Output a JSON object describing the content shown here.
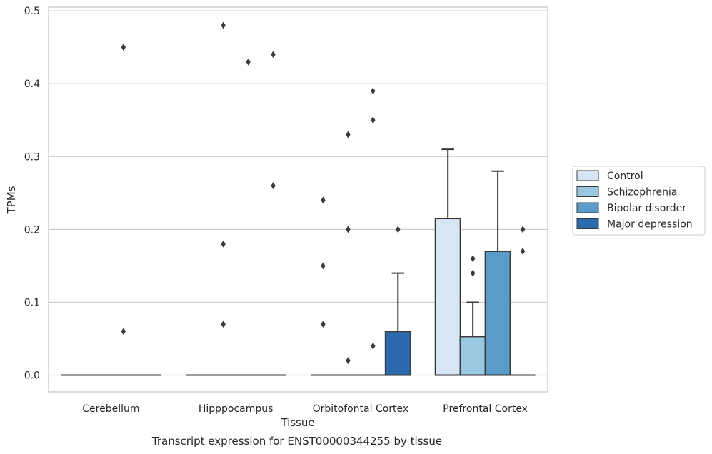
{
  "chart_data": {
    "type": "box",
    "title": "",
    "xlabel": "Tissue",
    "ylabel": "TPMs",
    "caption": "Transcript expression for ENST00000344255 by tissue",
    "ylim": [
      -0.023,
      0.505
    ],
    "yticks": [
      0.0,
      0.1,
      0.2,
      0.3,
      0.4,
      0.5
    ],
    "ytick_labels": [
      "0.0",
      "0.1",
      "0.2",
      "0.3",
      "0.4",
      "0.5"
    ],
    "grid": true,
    "legend_position": "center-right",
    "categories": [
      "Cerebellum",
      "Hipppocampus",
      "Orbitofontal Cortex",
      "Prefrontal Cortex"
    ],
    "series": [
      {
        "name": "Control",
        "color": "#d6e6f4",
        "boxes": [
          {
            "q1": 0,
            "median": 0,
            "q3": 0,
            "whisker_low": 0,
            "whisker_high": 0,
            "outliers": []
          },
          {
            "q1": 0,
            "median": 0,
            "q3": 0,
            "whisker_low": 0,
            "whisker_high": 0,
            "outliers": []
          },
          {
            "q1": 0,
            "median": 0,
            "q3": 0,
            "whisker_low": 0,
            "whisker_high": 0,
            "outliers": [
              0.07,
              0.15,
              0.24
            ]
          },
          {
            "q1": 0,
            "median": 0,
            "q3": 0.215,
            "whisker_low": 0,
            "whisker_high": 0.31,
            "outliers": []
          }
        ]
      },
      {
        "name": "Schizophrenia",
        "color": "#9ac8e0",
        "boxes": [
          {
            "q1": 0,
            "median": 0,
            "q3": 0,
            "whisker_low": 0,
            "whisker_high": 0,
            "outliers": []
          },
          {
            "q1": 0,
            "median": 0,
            "q3": 0,
            "whisker_low": 0,
            "whisker_high": 0,
            "outliers": [
              0.07,
              0.18,
              0.48
            ]
          },
          {
            "q1": 0,
            "median": 0,
            "q3": 0,
            "whisker_low": 0,
            "whisker_high": 0,
            "outliers": [
              0.02,
              0.2,
              0.33
            ]
          },
          {
            "q1": 0,
            "median": 0,
            "q3": 0.053,
            "whisker_low": 0,
            "whisker_high": 0.1,
            "outliers": [
              0.14,
              0.16
            ]
          }
        ]
      },
      {
        "name": "Bipolar disorder",
        "color": "#5b9bc9",
        "boxes": [
          {
            "q1": 0,
            "median": 0,
            "q3": 0,
            "whisker_low": 0,
            "whisker_high": 0,
            "outliers": [
              0.06,
              0.45
            ]
          },
          {
            "q1": 0,
            "median": 0,
            "q3": 0,
            "whisker_low": 0,
            "whisker_high": 0,
            "outliers": [
              0.43
            ]
          },
          {
            "q1": 0,
            "median": 0,
            "q3": 0,
            "whisker_low": 0,
            "whisker_high": 0,
            "outliers": [
              0.04,
              0.35,
              0.39
            ]
          },
          {
            "q1": 0,
            "median": 0,
            "q3": 0.17,
            "whisker_low": 0,
            "whisker_high": 0.28,
            "outliers": []
          }
        ]
      },
      {
        "name": "Major depression",
        "color": "#2a6aad",
        "boxes": [
          {
            "q1": 0,
            "median": 0,
            "q3": 0,
            "whisker_low": 0,
            "whisker_high": 0,
            "outliers": []
          },
          {
            "q1": 0,
            "median": 0,
            "q3": 0,
            "whisker_low": 0,
            "whisker_high": 0,
            "outliers": [
              0.26,
              0.44
            ]
          },
          {
            "q1": 0,
            "median": 0,
            "q3": 0.06,
            "whisker_low": 0,
            "whisker_high": 0.14,
            "outliers": [
              0.2
            ]
          },
          {
            "q1": 0,
            "median": 0,
            "q3": 0,
            "whisker_low": 0,
            "whisker_high": 0,
            "outliers": [
              0.17,
              0.2
            ]
          }
        ]
      }
    ],
    "colors": {
      "edge": "#3a3a3a",
      "grid": "#cccccc",
      "frame": "#cccccc"
    }
  }
}
